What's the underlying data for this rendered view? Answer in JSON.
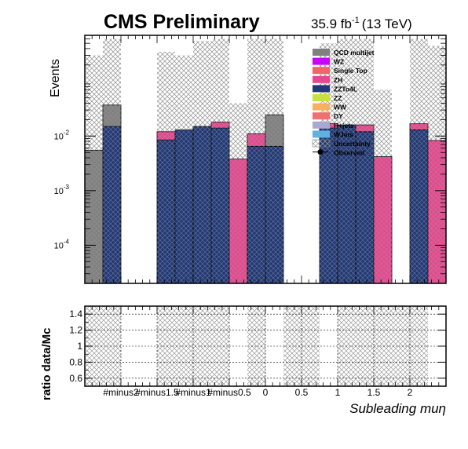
{
  "header": {
    "title": "CMS Preliminary",
    "lumi": "35.9 fb",
    "lumi_exp": "-1",
    "energy": "(13 TeV)"
  },
  "colors": {
    "QCD multijet": "#808080",
    "WZ": "#cc00ff",
    "Single Top": "#f2636b",
    "ZH": "#e8478f",
    "ZZTo4L": "#203878",
    "ZZ": "#c8e040",
    "WW": "#f8b060",
    "DY": "#f07070",
    "H+jets": "#a8a8d0",
    "WJets": "#60b0e0",
    "Uncertainty": "#9a9a9a",
    "Observed": "#000000"
  },
  "chart_data": [
    {
      "type": "bar",
      "stacked": true,
      "ylabel": "Events",
      "yscale": "log",
      "ylim": [
        2e-05,
        0.7
      ],
      "xlim": [
        -2.5,
        2.5
      ],
      "ytick_labels": [
        "10",
        "10",
        "10"
      ],
      "ytick_exps": [
        "-2",
        "-3",
        "-4"
      ],
      "ytick_values": [
        0.01,
        0.001,
        0.0001
      ],
      "bin_edges": [
        -2.5,
        -2.25,
        -2.0,
        -1.75,
        -1.5,
        -1.25,
        -1.0,
        -0.75,
        -0.5,
        -0.25,
        0.0,
        0.25,
        0.5,
        0.75,
        1.0,
        1.25,
        1.5,
        1.75,
        2.0,
        2.25,
        2.5
      ],
      "legend_position": "top-right",
      "legend": [
        "QCD multijet",
        "WZ",
        "Single Top",
        "ZH",
        "ZZTo4L",
        "ZZ",
        "WW",
        "DY",
        "H+jets",
        "WJets",
        "Uncertainty",
        "Observed"
      ],
      "series": [
        {
          "name": "ZZTo4L",
          "values": [
            0,
            0.015,
            0,
            0,
            0.0085,
            0.013,
            0.015,
            0.014,
            0,
            0.0065,
            0.0065,
            0,
            0,
            0.014,
            0.016,
            0.012,
            0,
            0,
            0.013,
            0
          ]
        },
        {
          "name": "ZH",
          "values": [
            0,
            0,
            0,
            0,
            0.0035,
            0,
            0,
            0.004,
            0.0038,
            0.0045,
            0,
            0,
            0,
            0.003,
            0,
            0.004,
            0.0042,
            0,
            0.0038,
            0.0083
          ]
        },
        {
          "name": "QCD multijet",
          "values": [
            0.0055,
            0.022,
            0,
            0,
            0,
            0,
            0,
            0,
            0,
            0,
            0.018,
            0,
            0,
            0,
            0,
            0,
            0,
            0,
            0,
            0
          ]
        }
      ],
      "uncertainty_band_top": [
        0.3,
        0.6,
        0,
        0,
        0.35,
        0.3,
        0.55,
        0.6,
        0.04,
        0.6,
        0.6,
        0,
        0,
        0.5,
        0.6,
        0.6,
        0.07,
        0.55,
        0.6,
        0.45
      ]
    },
    {
      "type": "bar",
      "ylabel": "ratio data/Mc",
      "xlabel": "Subleading   muη",
      "ylim": [
        0.5,
        1.5
      ],
      "yticks": [
        "1.4",
        "1.2",
        "1",
        "0.8",
        "0.6"
      ],
      "ytick_values": [
        1.4,
        1.2,
        1.0,
        0.8,
        0.6
      ],
      "xtick_labels": [
        "#minus2",
        "#minus1.5",
        "#minus1",
        "#minus0.5",
        "0",
        "0.5",
        "1",
        "1.5",
        "2"
      ],
      "xtick_values": [
        -2,
        -1.5,
        -1,
        -0.5,
        0,
        0.5,
        1,
        1.5,
        2
      ],
      "grid": true,
      "band_bins": [
        -2.5,
        -2.0,
        -1.5,
        -0.5,
        -0.25,
        0.0,
        0.25,
        0.75,
        1.0,
        2.25
      ]
    }
  ]
}
